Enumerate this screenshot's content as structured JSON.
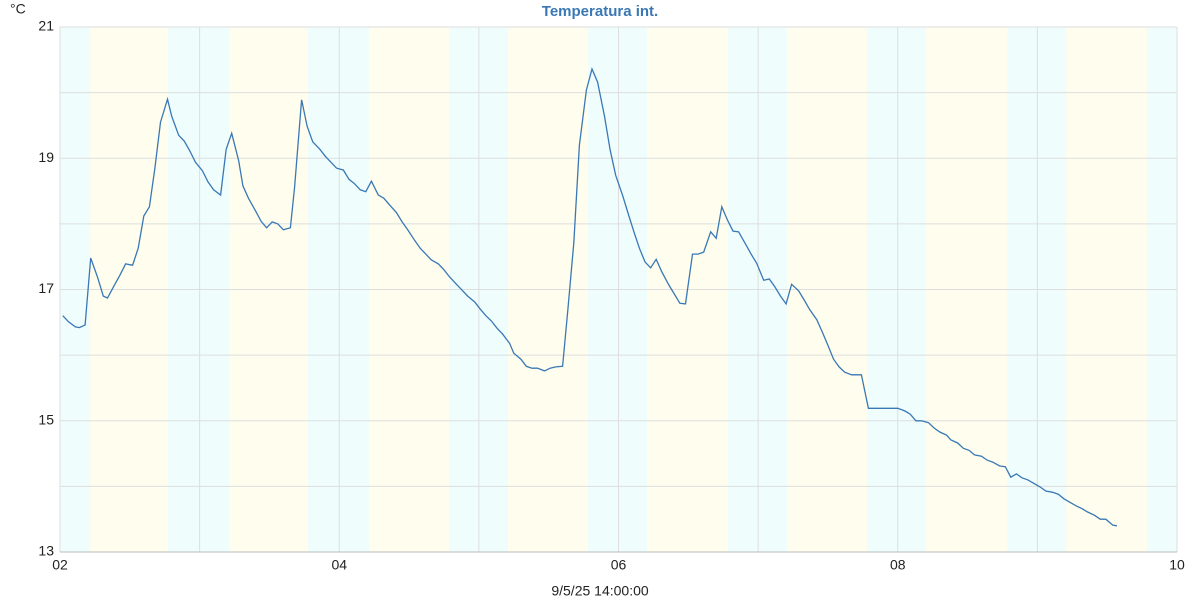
{
  "chart_data": {
    "type": "line",
    "title": "Temperatura int.",
    "ylabel": "°C",
    "xlabel": "9/5/25 14:00:00",
    "xlim": [
      2,
      10
    ],
    "ylim": [
      13,
      21
    ],
    "xticks": [
      {
        "value": 2,
        "label": "02"
      },
      {
        "value": 4,
        "label": "04"
      },
      {
        "value": 6,
        "label": "06"
      },
      {
        "value": 8,
        "label": "08"
      },
      {
        "value": 10,
        "label": "10"
      }
    ],
    "minor_xticks": [
      3,
      5,
      7,
      9
    ],
    "yticks": [
      13,
      15,
      17,
      19,
      21
    ],
    "minor_yticks": [
      14,
      16,
      18,
      20
    ],
    "grid": true,
    "bands": [
      {
        "start": 2,
        "end": 2.215,
        "color": "#effdfd"
      },
      {
        "start": 2.215,
        "end": 2.774,
        "color": "#fefdee"
      },
      {
        "start": 2.774,
        "end": 3.211,
        "color": "#effdfd"
      },
      {
        "start": 3.211,
        "end": 3.777,
        "color": "#fefdee"
      },
      {
        "start": 3.777,
        "end": 4.213,
        "color": "#effdfd"
      },
      {
        "start": 4.213,
        "end": 4.787,
        "color": "#fefdee"
      },
      {
        "start": 4.787,
        "end": 5.209,
        "color": "#effdfd"
      },
      {
        "start": 5.209,
        "end": 5.782,
        "color": "#fefdee"
      },
      {
        "start": 5.782,
        "end": 6.205,
        "color": "#effdfd"
      },
      {
        "start": 6.205,
        "end": 6.785,
        "color": "#fefdee"
      },
      {
        "start": 6.785,
        "end": 7.208,
        "color": "#effdfd"
      },
      {
        "start": 7.208,
        "end": 7.781,
        "color": "#fefdee"
      },
      {
        "start": 7.781,
        "end": 8.203,
        "color": "#effdfd"
      },
      {
        "start": 8.203,
        "end": 8.784,
        "color": "#fefdee"
      },
      {
        "start": 8.784,
        "end": 9.206,
        "color": "#effdfd"
      },
      {
        "start": 9.206,
        "end": 9.786,
        "color": "#fefdee"
      },
      {
        "start": 9.786,
        "end": 10,
        "color": "#effdfd"
      }
    ],
    "x": [
      2.02,
      2.06,
      2.11,
      2.14,
      2.18,
      2.22,
      2.27,
      2.31,
      2.34,
      2.39,
      2.43,
      2.47,
      2.52,
      2.56,
      2.6,
      2.64,
      2.68,
      2.72,
      2.77,
      2.8,
      2.85,
      2.89,
      2.93,
      2.97,
      3.02,
      3.06,
      3.1,
      3.15,
      3.19,
      3.23,
      3.28,
      3.31,
      3.35,
      3.4,
      3.44,
      3.48,
      3.52,
      3.56,
      3.6,
      3.65,
      3.68,
      3.73,
      3.77,
      3.81,
      3.86,
      3.9,
      3.94,
      3.98,
      4.03,
      4.07,
      4.11,
      4.15,
      4.19,
      4.23,
      4.28,
      4.32,
      4.36,
      4.41,
      4.45,
      4.49,
      4.54,
      4.58,
      4.62,
      4.66,
      4.71,
      4.75,
      4.79,
      4.84,
      4.88,
      4.92,
      4.97,
      5.01,
      5.05,
      5.09,
      5.13,
      5.17,
      5.22,
      5.25,
      5.3,
      5.34,
      5.38,
      5.42,
      5.47,
      5.51,
      5.55,
      5.6,
      5.64,
      5.68,
      5.72,
      5.77,
      5.81,
      5.85,
      5.9,
      5.94,
      5.98,
      6.03,
      6.07,
      6.11,
      6.15,
      6.19,
      6.23,
      6.27,
      6.31,
      6.36,
      6.4,
      6.44,
      6.48,
      6.53,
      6.57,
      6.61,
      6.66,
      6.7,
      6.74,
      6.78,
      6.82,
      6.86,
      6.91,
      6.95,
      6.99,
      7.04,
      7.08,
      7.12,
      7.16,
      7.2,
      7.24,
      7.29,
      7.33,
      7.37,
      7.42,
      7.46,
      7.5,
      7.54,
      7.58,
      7.62,
      7.67,
      7.71,
      7.74,
      7.79,
      7.83,
      7.87,
      7.92,
      7.96,
      8.0,
      8.05,
      8.09,
      8.13,
      8.17,
      8.22,
      8.26,
      8.3,
      8.35,
      8.38,
      8.43,
      8.47,
      8.51,
      8.55,
      8.6,
      8.64,
      8.68,
      8.73,
      8.77,
      8.81,
      8.85,
      8.89,
      8.93,
      8.98,
      9.02,
      9.06,
      9.11,
      9.15,
      9.19,
      9.23,
      9.28,
      9.32,
      9.36,
      9.41,
      9.45,
      9.49,
      9.54,
      9.57
    ],
    "series": [
      {
        "color": "#3a78b5",
        "values": [
          16.6,
          16.51,
          16.43,
          16.42,
          16.46,
          17.48,
          17.18,
          16.9,
          16.87,
          17.07,
          17.22,
          17.39,
          17.37,
          17.63,
          18.12,
          18.26,
          18.85,
          19.55,
          19.9,
          19.64,
          19.35,
          19.26,
          19.11,
          18.94,
          18.81,
          18.64,
          18.52,
          18.44,
          19.14,
          19.38,
          18.96,
          18.58,
          18.39,
          18.2,
          18.04,
          17.94,
          18.03,
          18.0,
          17.91,
          17.94,
          18.56,
          19.89,
          19.49,
          19.25,
          19.14,
          19.03,
          18.94,
          18.85,
          18.82,
          18.68,
          18.61,
          18.52,
          18.49,
          18.65,
          18.44,
          18.39,
          18.29,
          18.17,
          18.03,
          17.91,
          17.75,
          17.63,
          17.54,
          17.45,
          17.39,
          17.3,
          17.19,
          17.08,
          16.99,
          16.9,
          16.81,
          16.7,
          16.6,
          16.52,
          16.41,
          16.32,
          16.18,
          16.03,
          15.94,
          15.83,
          15.8,
          15.8,
          15.76,
          15.8,
          15.82,
          15.83,
          16.75,
          17.71,
          19.2,
          20.04,
          20.36,
          20.16,
          19.64,
          19.13,
          18.74,
          18.43,
          18.15,
          17.88,
          17.63,
          17.42,
          17.33,
          17.46,
          17.27,
          17.07,
          16.93,
          16.79,
          16.78,
          17.54,
          17.54,
          17.57,
          17.88,
          17.78,
          18.26,
          18.06,
          17.89,
          17.88,
          17.69,
          17.54,
          17.4,
          17.14,
          17.16,
          17.04,
          16.9,
          16.78,
          17.08,
          16.98,
          16.84,
          16.69,
          16.54,
          16.35,
          16.15,
          15.94,
          15.82,
          15.74,
          15.7,
          15.7,
          15.7,
          15.19,
          15.19,
          15.19,
          15.19,
          15.19,
          15.19,
          15.15,
          15.1,
          15.0,
          15.0,
          14.97,
          14.89,
          14.83,
          14.78,
          14.71,
          14.66,
          14.58,
          14.55,
          14.48,
          14.46,
          14.4,
          14.37,
          14.31,
          14.3,
          14.14,
          14.19,
          14.13,
          14.1,
          14.04,
          13.99,
          13.93,
          13.91,
          13.88,
          13.81,
          13.76,
          13.7,
          13.66,
          13.61,
          13.56,
          13.5,
          13.5,
          13.41,
          13.4
        ]
      }
    ]
  }
}
